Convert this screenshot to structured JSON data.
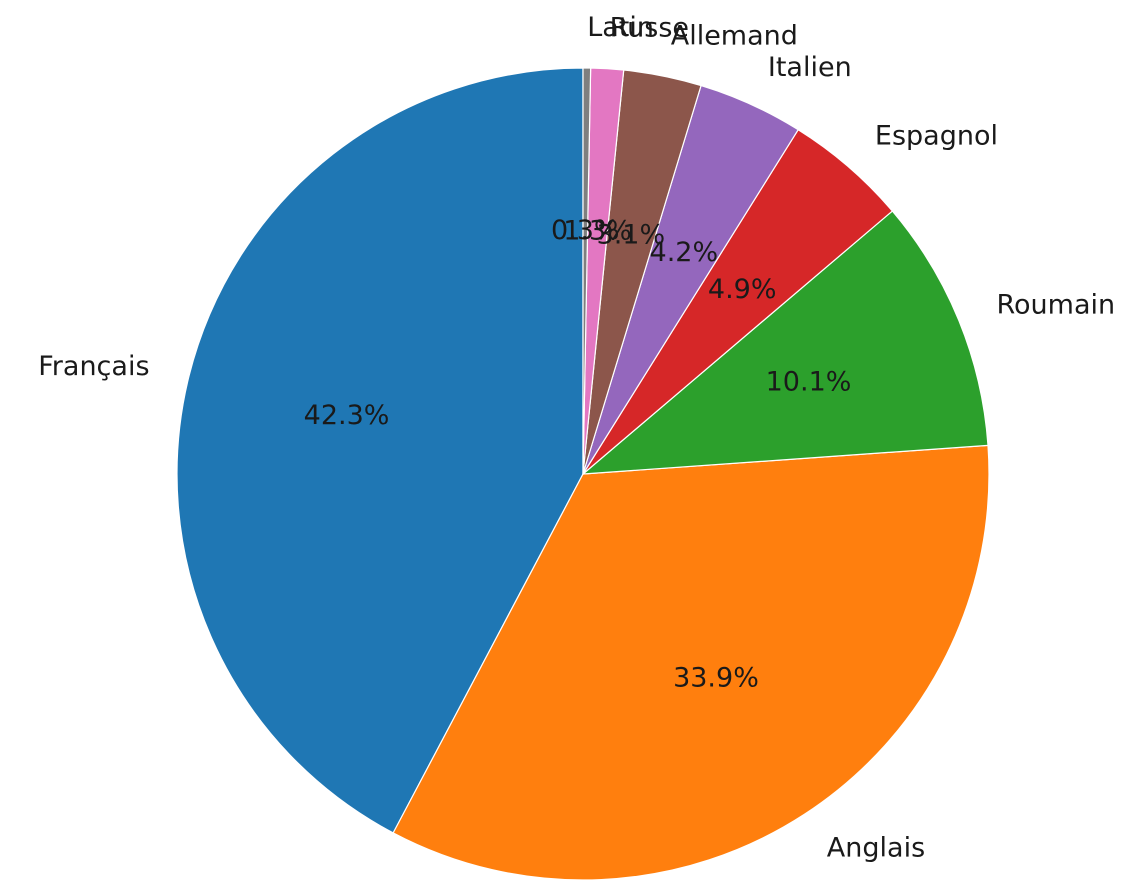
{
  "chart_data": {
    "type": "pie",
    "start": "top",
    "direction": "counterclockwise",
    "categories": [
      "Français",
      "Anglais",
      "Roumain",
      "Espagnol",
      "Italien",
      "Allemand",
      "Russe",
      "Latin"
    ],
    "values": [
      42.3,
      33.9,
      10.1,
      4.9,
      4.2,
      3.1,
      1.3,
      0.3
    ],
    "percent_labels": [
      "42.3%",
      "33.9%",
      "10.1%",
      "4.9%",
      "4.2%",
      "3.1%",
      "1.3%",
      "0.3%"
    ],
    "colors": [
      "#1f77b4",
      "#ff7f0e",
      "#2ca02c",
      "#d62728",
      "#9467bd",
      "#8c564b",
      "#e377c2",
      "#7f7f7f"
    ],
    "title": "",
    "legend": "none"
  }
}
